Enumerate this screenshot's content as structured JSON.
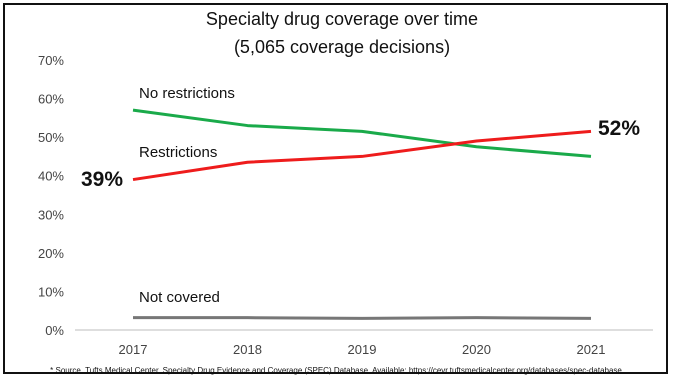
{
  "chart_data": {
    "type": "line",
    "title_line1": "Specialty drug coverage over time",
    "title_line2": "(5,065 coverage decisions)",
    "x": [
      "2017",
      "2018",
      "2019",
      "2020",
      "2021"
    ],
    "y_ticks": [
      "0%",
      "10%",
      "20%",
      "30%",
      "40%",
      "50%",
      "60%",
      "70%"
    ],
    "ylim": [
      0,
      70
    ],
    "grid": false,
    "series": [
      {
        "name": "No restrictions",
        "color": "#1aaa4a",
        "values": [
          57,
          53,
          51.5,
          47.5,
          45
        ]
      },
      {
        "name": "Restrictions",
        "color": "#ee1c1c",
        "values": [
          39,
          43.5,
          45,
          49,
          51.5
        ]
      },
      {
        "name": "Not covered",
        "color": "#777777",
        "values": [
          3.2,
          3.2,
          3.0,
          3.2,
          3.0
        ]
      }
    ],
    "callouts": {
      "start": "39%",
      "end": "52%"
    }
  },
  "footnote": "* Source. Tufts Medical Center. Specialty Drug Evidence and Coverage (SPEC) Database. Available: https://cevr.tuftsmedicalcenter.org/databases/spec-database"
}
